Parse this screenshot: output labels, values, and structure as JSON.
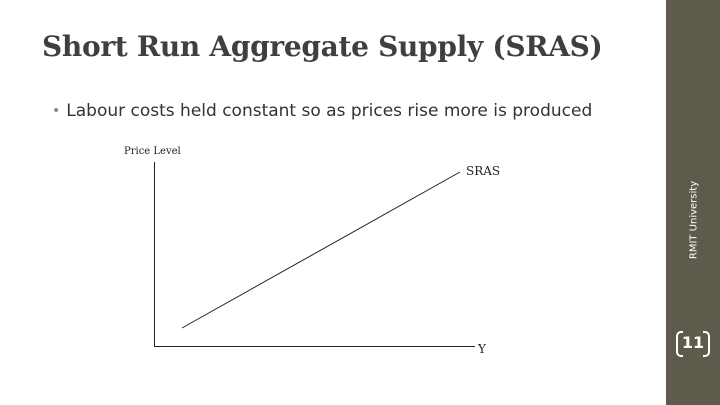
{
  "slide": {
    "title": "Short Run Aggregate Supply (SRAS)",
    "bullet": "Labour costs held constant so as prices rise more is produced",
    "sidebar_text": "RMIT University",
    "page_number": "11"
  },
  "diagram": {
    "y_axis_label": "Price Level",
    "x_axis_label": "Y",
    "curve_label": "SRAS"
  },
  "colors": {
    "sidebar": "#5e5a4c",
    "title": "#3f3f3f"
  }
}
